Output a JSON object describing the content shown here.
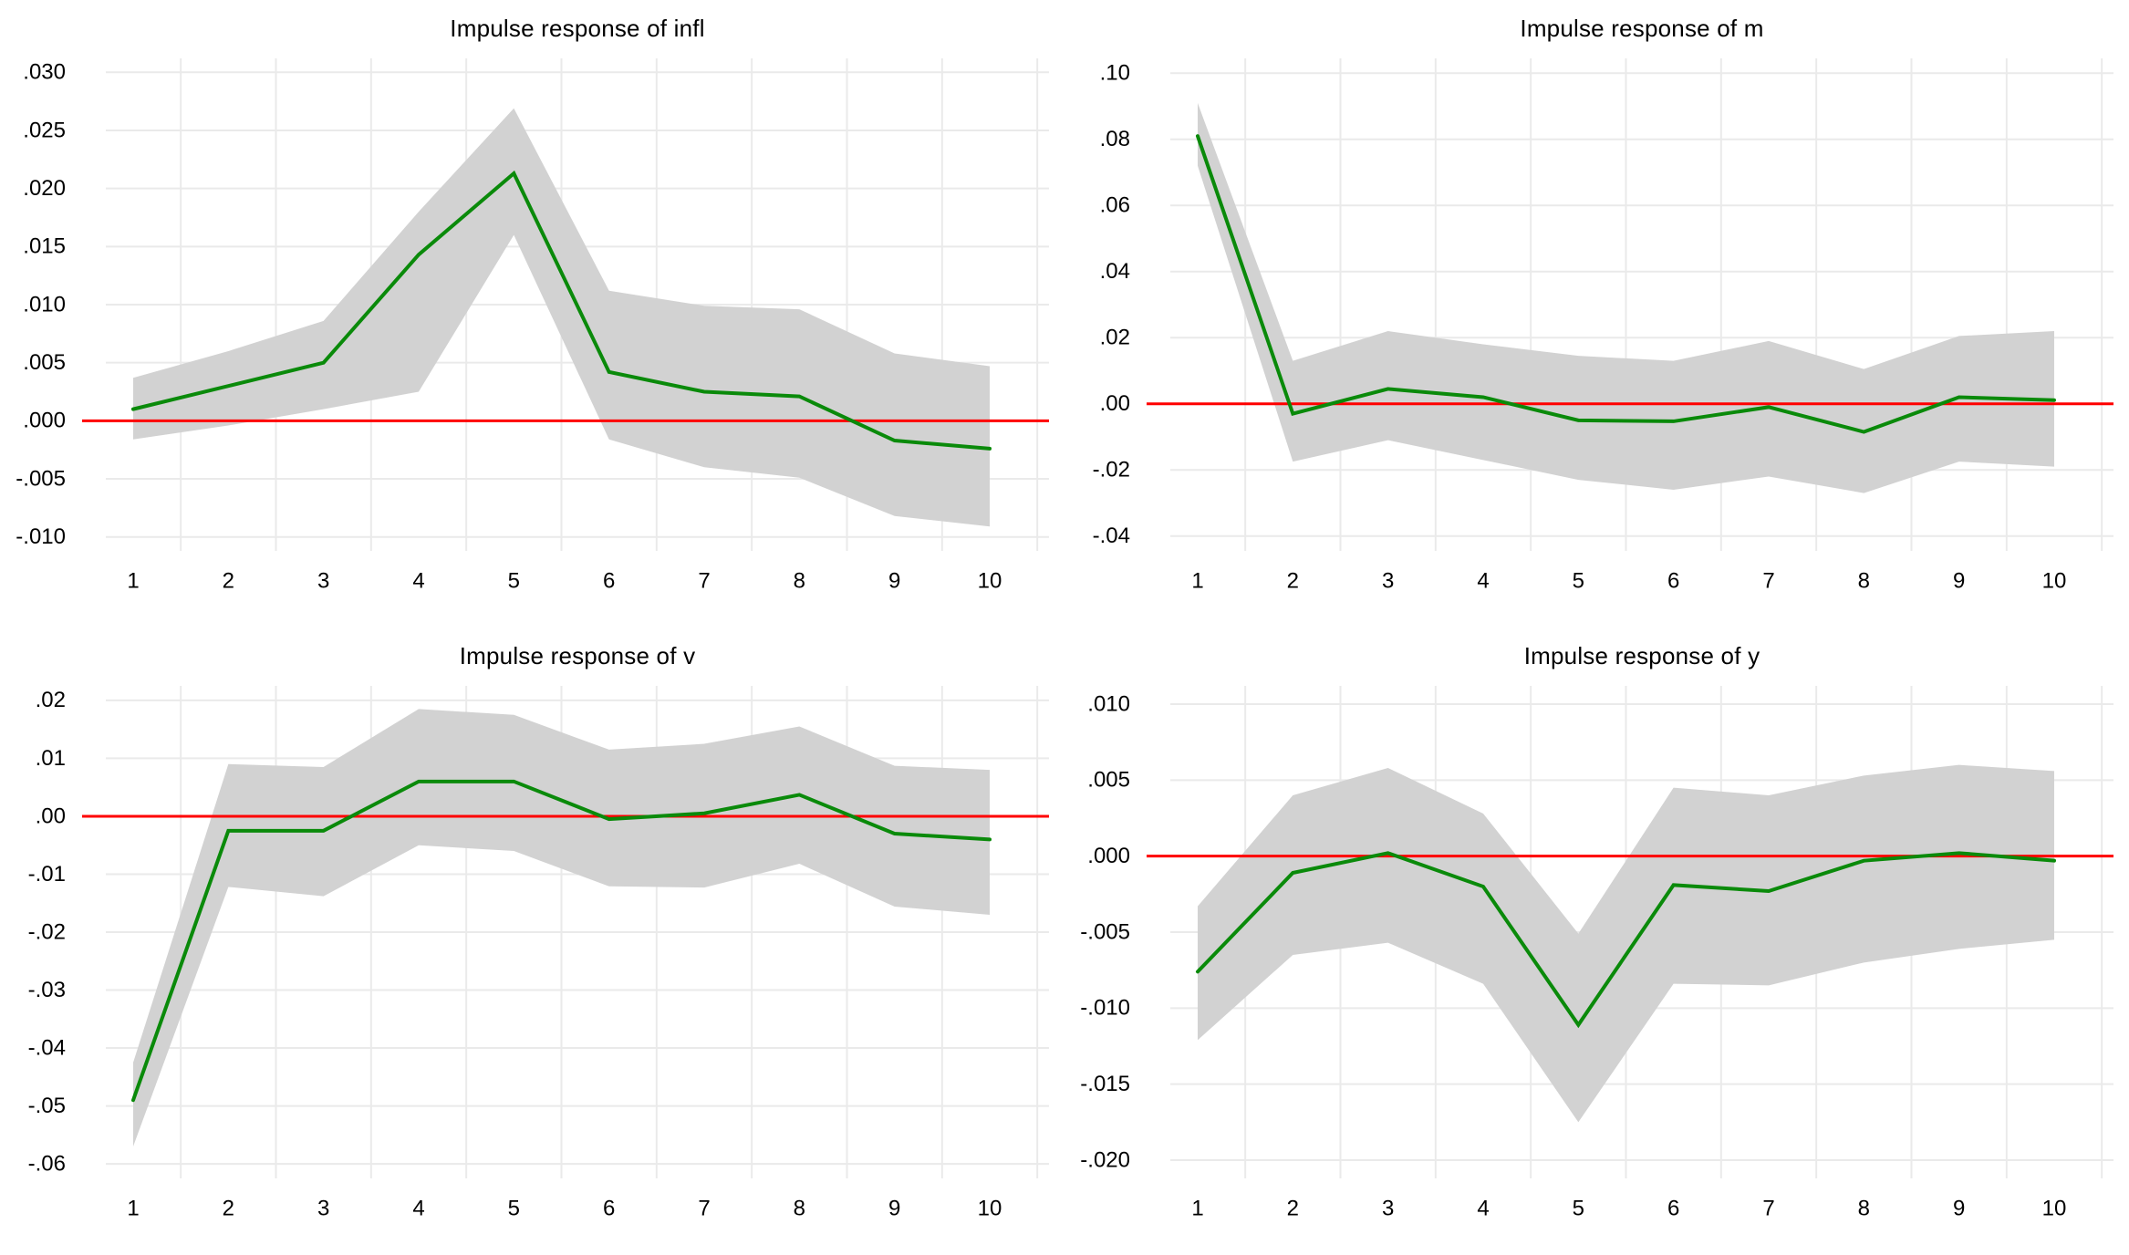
{
  "colors": {
    "irf_line": "#0a8a0a",
    "zero_line": "#ff0000",
    "confidence_band": "#d2d2d2",
    "gridline": "#eaeaea",
    "text": "#000000",
    "background": "#ffffff"
  },
  "chart_data": [
    {
      "type": "line",
      "title": "Impulse response of infl",
      "x": [
        1,
        2,
        3,
        4,
        5,
        6,
        7,
        8,
        9,
        10
      ],
      "xtick_labels": [
        "1",
        "2",
        "3",
        "4",
        "5",
        "6",
        "7",
        "8",
        "9",
        "10"
      ],
      "series": [
        {
          "name": "impulse-response",
          "values": [
            0.001,
            0.003,
            0.005,
            0.0143,
            0.0213,
            0.0042,
            0.0025,
            0.0021,
            -0.0017,
            -0.0024
          ]
        },
        {
          "name": "ci-upper",
          "values": [
            0.0037,
            0.006,
            0.0086,
            0.018,
            0.0269,
            0.0112,
            0.0099,
            0.0096,
            0.0058,
            0.0047
          ]
        },
        {
          "name": "ci-lower",
          "values": [
            -0.0016,
            -0.0004,
            0.001,
            0.0025,
            0.016,
            -0.0016,
            -0.004,
            -0.0049,
            -0.0082,
            -0.0091
          ]
        }
      ],
      "yticks": {
        "labels": [
          ".030",
          ".025",
          ".020",
          ".015",
          ".010",
          ".005",
          ".000",
          "-.005",
          "-.010"
        ],
        "values": [
          0.03,
          0.025,
          0.02,
          0.015,
          0.01,
          0.005,
          0.0,
          -0.005,
          -0.01
        ]
      },
      "ylim": [
        -0.0112,
        0.0312
      ],
      "zero_line": 0,
      "grid": true,
      "legend": "none"
    },
    {
      "type": "line",
      "title": "Impulse response of m",
      "x": [
        1,
        2,
        3,
        4,
        5,
        6,
        7,
        8,
        9,
        10
      ],
      "xtick_labels": [
        "1",
        "2",
        "3",
        "4",
        "5",
        "6",
        "7",
        "8",
        "9",
        "10"
      ],
      "series": [
        {
          "name": "impulse-response",
          "values": [
            0.081,
            -0.003,
            0.0045,
            0.002,
            -0.005,
            -0.0053,
            -0.001,
            -0.0085,
            0.002,
            0.0011
          ]
        },
        {
          "name": "ci-upper",
          "values": [
            0.091,
            0.013,
            0.022,
            0.018,
            0.0145,
            0.013,
            0.019,
            0.0105,
            0.0205,
            0.022
          ]
        },
        {
          "name": "ci-lower",
          "values": [
            0.072,
            -0.0175,
            -0.011,
            -0.017,
            -0.023,
            -0.026,
            -0.022,
            -0.027,
            -0.0175,
            -0.019
          ]
        }
      ],
      "yticks": {
        "labels": [
          ".10",
          ".08",
          ".06",
          ".04",
          ".02",
          ".00",
          "-.02",
          "-.04"
        ],
        "values": [
          0.1,
          0.08,
          0.06,
          0.04,
          0.02,
          0.0,
          -0.02,
          -0.04
        ]
      },
      "ylim": [
        -0.0445,
        0.1045
      ],
      "zero_line": 0,
      "grid": true,
      "legend": "none"
    },
    {
      "type": "line",
      "title": "Impulse response of v",
      "x": [
        1,
        2,
        3,
        4,
        5,
        6,
        7,
        8,
        9,
        10
      ],
      "xtick_labels": [
        "1",
        "2",
        "3",
        "4",
        "5",
        "6",
        "7",
        "8",
        "9",
        "10"
      ],
      "series": [
        {
          "name": "impulse-response",
          "values": [
            -0.049,
            -0.0025,
            -0.0025,
            0.006,
            0.006,
            -0.0005,
            0.0005,
            0.0037,
            -0.003,
            -0.004
          ]
        },
        {
          "name": "ci-upper",
          "values": [
            -0.0425,
            0.009,
            0.0085,
            0.0185,
            0.0175,
            0.0115,
            0.0125,
            0.0155,
            0.0087,
            0.008
          ]
        },
        {
          "name": "ci-lower",
          "values": [
            -0.057,
            -0.0122,
            -0.0138,
            -0.005,
            -0.006,
            -0.0121,
            -0.0123,
            -0.0082,
            -0.0156,
            -0.017
          ]
        }
      ],
      "yticks": {
        "labels": [
          ".02",
          ".01",
          ".00",
          "-.01",
          "-.02",
          "-.03",
          "-.04",
          "-.05",
          "-.06"
        ],
        "values": [
          0.02,
          0.01,
          0.0,
          -0.01,
          -0.02,
          -0.03,
          -0.04,
          -0.05,
          -0.06
        ]
      },
      "ylim": [
        -0.0625,
        0.0225
      ],
      "zero_line": 0,
      "grid": true,
      "legend": "none"
    },
    {
      "type": "line",
      "title": "Impulse response of y",
      "x": [
        1,
        2,
        3,
        4,
        5,
        6,
        7,
        8,
        9,
        10
      ],
      "xtick_labels": [
        "1",
        "2",
        "3",
        "4",
        "5",
        "6",
        "7",
        "8",
        "9",
        "10"
      ],
      "series": [
        {
          "name": "impulse-response",
          "values": [
            -0.0076,
            -0.0011,
            0.0002,
            -0.002,
            -0.0111,
            -0.0019,
            -0.0023,
            -0.0003,
            0.0002,
            -0.0003
          ]
        },
        {
          "name": "ci-upper",
          "values": [
            -0.0033,
            0.004,
            0.0058,
            0.0028,
            -0.0051,
            0.0045,
            0.004,
            0.0053,
            0.006,
            0.0056
          ]
        },
        {
          "name": "ci-lower",
          "values": [
            -0.0121,
            -0.0065,
            -0.0057,
            -0.0084,
            -0.0175,
            -0.0084,
            -0.0085,
            -0.007,
            -0.0061,
            -0.0055
          ]
        }
      ],
      "yticks": {
        "labels": [
          ".010",
          ".005",
          ".000",
          "-.005",
          "-.010",
          "-.015",
          "-.020"
        ],
        "values": [
          0.01,
          0.005,
          0.0,
          -0.005,
          -0.01,
          -0.015,
          -0.02
        ]
      },
      "ylim": [
        -0.0212,
        0.0112
      ],
      "zero_line": 0,
      "grid": true,
      "legend": "none"
    }
  ]
}
